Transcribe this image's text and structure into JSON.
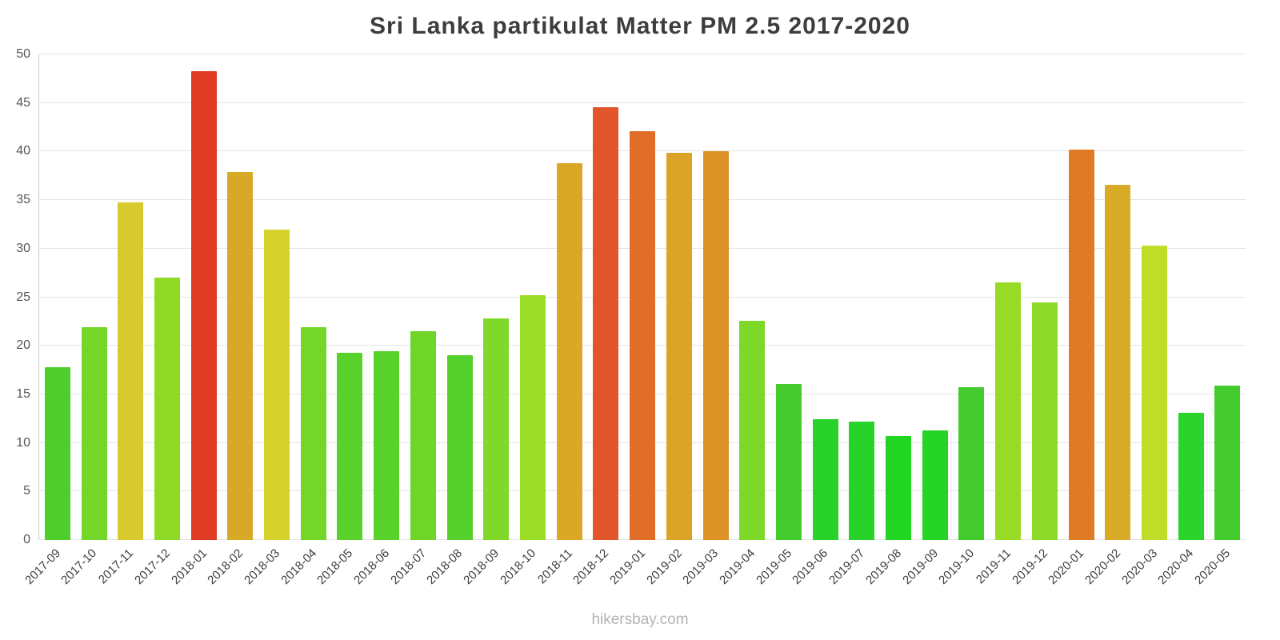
{
  "footer": "hikersbay.com",
  "chart_data": {
    "type": "bar",
    "title": "Sri Lanka partikulat Matter PM 2.5 2017-2020",
    "xlabel": "",
    "ylabel": "",
    "ylim": [
      0,
      50
    ],
    "ytick_step": 5,
    "grid": true,
    "legend": "none",
    "categories": [
      "2017-09",
      "2017-10",
      "2017-11",
      "2017-12",
      "2018-01",
      "2018-02",
      "2018-03",
      "2018-04",
      "2018-05",
      "2018-06",
      "2018-07",
      "2018-08",
      "2018-09",
      "2018-10",
      "2018-11",
      "2018-12",
      "2019-01",
      "2019-02",
      "2019-03",
      "2019-04",
      "2019-05",
      "2019-06",
      "2019-07",
      "2019-08",
      "2019-09",
      "2019-10",
      "2019-11",
      "2019-12",
      "2020-01",
      "2020-02",
      "2020-03",
      "2020-04",
      "2020-05"
    ],
    "values": [
      17.8,
      21.9,
      34.8,
      27.0,
      48.3,
      37.9,
      32.0,
      21.9,
      19.3,
      19.4,
      21.5,
      19.0,
      22.8,
      25.2,
      38.8,
      44.6,
      42.1,
      39.9,
      40.0,
      22.6,
      16.1,
      12.4,
      12.2,
      10.7,
      11.3,
      15.7,
      26.5,
      24.5,
      40.2,
      36.6,
      30.3,
      13.1,
      15.9
    ],
    "colors": [
      "#4ecd2d",
      "#73d629",
      "#d7c92e",
      "#90da27",
      "#df3a23",
      "#d8a827",
      "#d5d02b",
      "#73d629",
      "#59d12b",
      "#59d12b",
      "#6fd529",
      "#55d02c",
      "#80d828",
      "#9bdc27",
      "#dba726",
      "#e0562a",
      "#e06d28",
      "#dca427",
      "#de9326",
      "#7ed828",
      "#46cb2e",
      "#28d228",
      "#28d228",
      "#22d522",
      "#25d425",
      "#44ca2f",
      "#98db27",
      "#8dd928",
      "#df7b25",
      "#d9ab28",
      "#bfdd28",
      "#2cd32c",
      "#45cb2e"
    ],
    "colors_meaning": {
      "low_green": "#22d522",
      "mid_yellow": "#d5d02b",
      "high_orange": "#df7b25",
      "max_red": "#df3a23"
    }
  }
}
